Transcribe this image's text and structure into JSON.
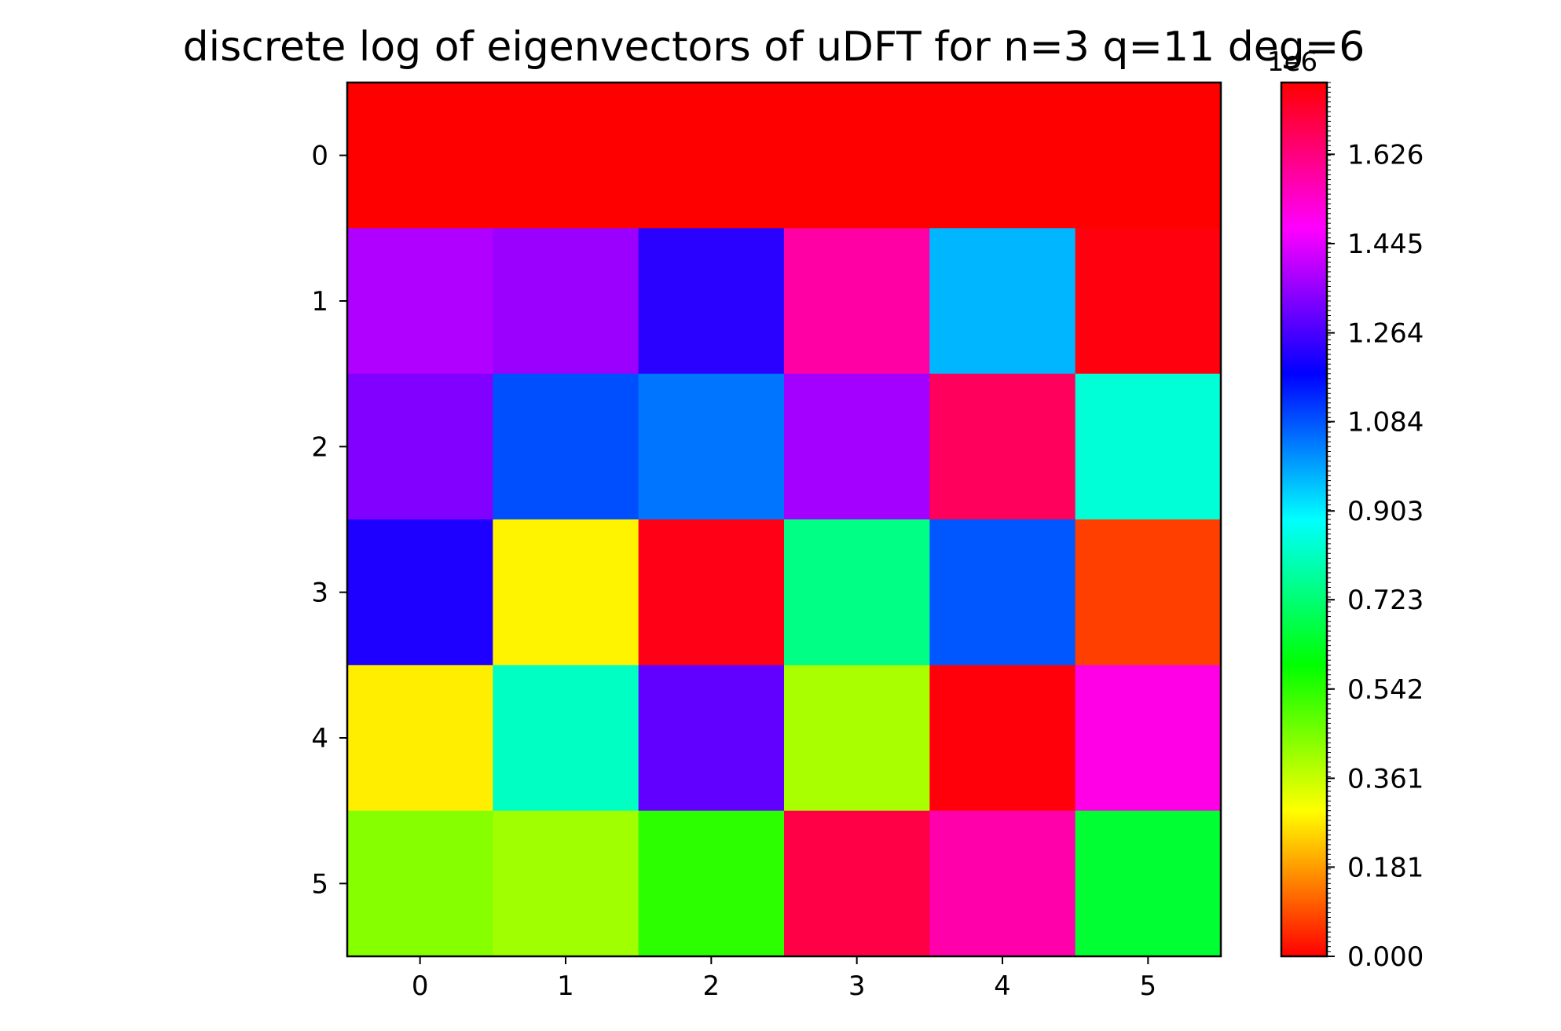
{
  "chart_data": {
    "type": "heatmap",
    "title": "discrete log of eigenvectors of uDFT for n=3 q=11 deg=6",
    "colormap": "hsv",
    "rows": [
      "0",
      "1",
      "2",
      "3",
      "4",
      "5"
    ],
    "cols": [
      "0",
      "1",
      "2",
      "3",
      "4",
      "5"
    ],
    "values": [
      [
        0,
        0,
        0,
        0,
        0,
        0
      ],
      [
        1385000,
        1360000,
        1230000,
        1580000,
        970000,
        1755000
      ],
      [
        1330000,
        1090000,
        1045000,
        1370000,
        1665000,
        840000
      ],
      [
        1215000,
        282000,
        1745000,
        745000,
        1080000,
        73000
      ],
      [
        276000,
        815000,
        1295000,
        395000,
        1760000,
        1505000
      ],
      [
        435000,
        405000,
        540000,
        1690000,
        1575000,
        650000
      ]
    ],
    "colorbar": {
      "offset_label": "1e6",
      "vmin": 0,
      "vmax": 1771560,
      "ticks": [
        0.0,
        0.181,
        0.361,
        0.542,
        0.723,
        0.903,
        1.084,
        1.264,
        1.445,
        1.626
      ],
      "tick_labels": [
        "0.000",
        "0.181",
        "0.361",
        "0.542",
        "0.723",
        "0.903",
        "1.084",
        "1.264",
        "1.445",
        "1.626"
      ]
    },
    "colors": {
      "hsv_stops": [
        "#ff0000",
        "#ffff00",
        "#00ff00",
        "#00ffff",
        "#0000ff",
        "#ff00ff",
        "#ff0000"
      ]
    }
  }
}
